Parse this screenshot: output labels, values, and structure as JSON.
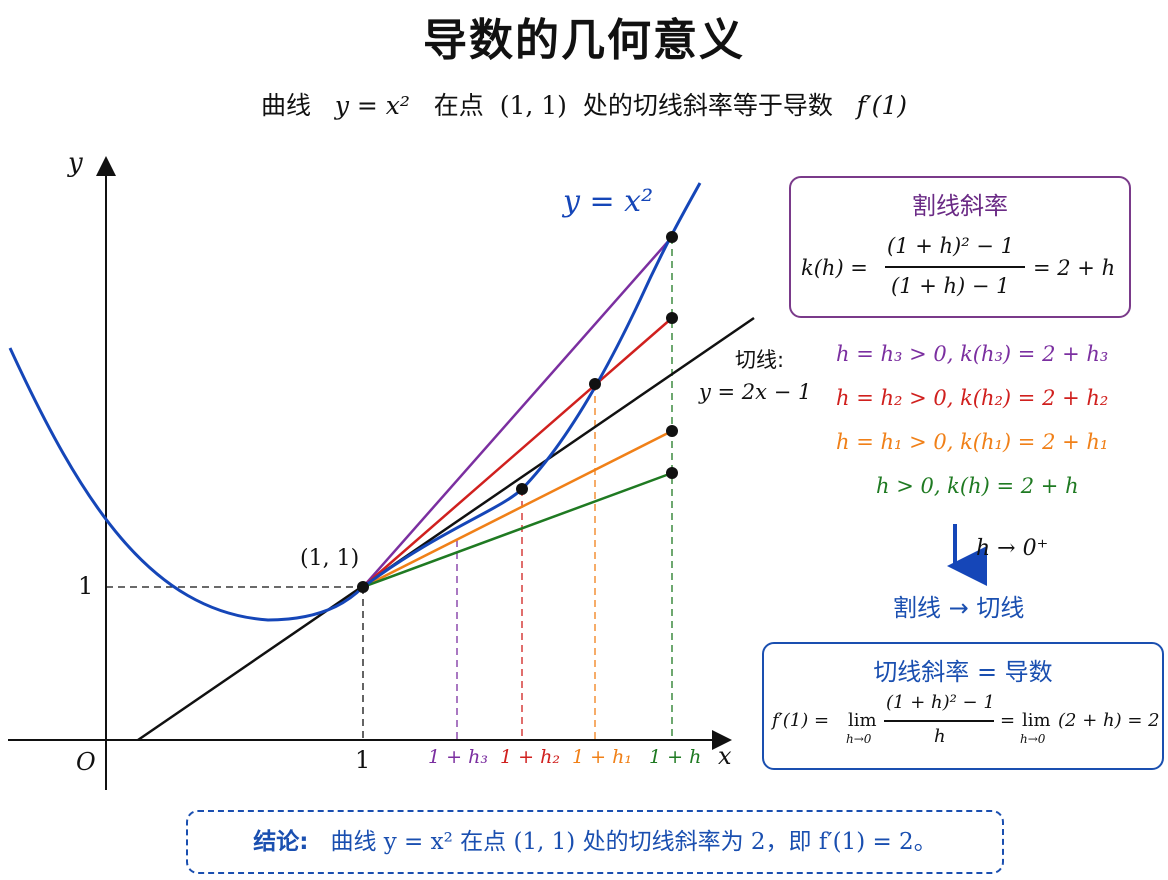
{
  "title": "导数的几何意义",
  "subtitle": {
    "pre": "曲线",
    "eq": "y = x²",
    "mid": "在点",
    "point": "(1, 1)",
    "post": "处的切线斜率等于导数",
    "deriv": "f′(1)"
  },
  "graph": {
    "y_axis_label": "y",
    "x_axis_label": "x",
    "origin_label": "O",
    "y_tick_label": "1",
    "x_tick_label": "1",
    "curve_label": "y = x²",
    "point_label": "(1, 1)",
    "tangent_label_title": "切线:",
    "tangent_label_eq": "y = 2x − 1",
    "x_markers": [
      {
        "label": "1 + h₃",
        "color": "#7b2fa0"
      },
      {
        "label": "1 + h₂",
        "color": "#d0201e"
      },
      {
        "label": "1 + h₁",
        "color": "#f08018"
      },
      {
        "label": "1 + h",
        "color": "#1f7a22"
      }
    ]
  },
  "secant_box": {
    "heading": "割线斜率",
    "formula_lhs": "k(h) =",
    "numerator": "(1 + h)² − 1",
    "denominator": "(1 + h) − 1",
    "formula_rhs": "= 2 + h"
  },
  "slopes": [
    {
      "text": "h = h₃ > 0,  k(h₃) = 2 + h₃",
      "color": "#7b2fa0"
    },
    {
      "text": "h = h₂ > 0,  k(h₂) = 2 + h₂",
      "color": "#d0201e"
    },
    {
      "text": "h = h₁ > 0,  k(h₁) = 2 + h₁",
      "color": "#f08018"
    },
    {
      "text": "h > 0,   k(h) = 2 + h",
      "color": "#1f7a22"
    }
  ],
  "limit_label": "h → 0⁺",
  "secant_to_tangent": "割线 → 切线",
  "deriv_box": {
    "heading": "切线斜率 = 导数",
    "lhs": "f′(1) =",
    "lim1": "lim",
    "lim1_sub": "h→0",
    "numerator": "(1 + h)² − 1",
    "denominator": "h",
    "mid": "=",
    "lim2": "lim",
    "lim2_sub": "h→0",
    "rhs": "(2 + h) = 2"
  },
  "conclusion": {
    "label": "结论:",
    "text": "曲线  y = x²  在点 (1, 1) 处的切线斜率为 2，即  f′(1) = 2。"
  },
  "colors": {
    "curve": "#1546b8",
    "tangent": "#111111",
    "h3": "#7b2fa0",
    "h2": "#d0201e",
    "h1": "#f08018",
    "h": "#1f7a22",
    "accent_blue": "#1a4fb0"
  }
}
